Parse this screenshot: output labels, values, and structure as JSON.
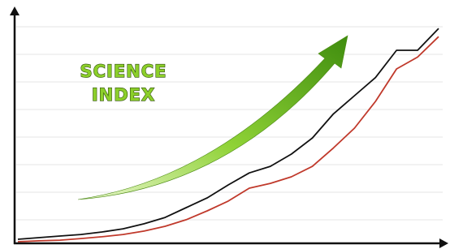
{
  "chart_data": {
    "type": "line",
    "title": [
      "SCIENCE",
      "INDEX"
    ],
    "x": [
      0,
      1,
      2,
      3,
      4,
      5,
      6,
      7,
      8,
      9,
      10,
      11,
      12,
      13,
      14,
      15,
      16,
      17,
      18,
      19,
      20
    ],
    "xlim": [
      0,
      20
    ],
    "ylim": [
      0,
      100
    ],
    "series": [
      {
        "color": "#111111",
        "values": [
          1.8,
          2.5,
          3.2,
          3.9,
          5,
          6.4,
          8.6,
          11.4,
          15.7,
          20,
          25.7,
          31,
          33.9,
          39.3,
          46.4,
          57,
          65,
          73,
          85,
          85,
          94.6
        ]
      },
      {
        "color": "#c0392b",
        "values": [
          0.7,
          1.1,
          1.4,
          2.1,
          2.9,
          3.9,
          5.4,
          7.5,
          10.4,
          14.3,
          18.6,
          24.3,
          26.4,
          29.3,
          33.9,
          42,
          50.7,
          62.5,
          76.8,
          82,
          91
        ]
      }
    ]
  }
}
